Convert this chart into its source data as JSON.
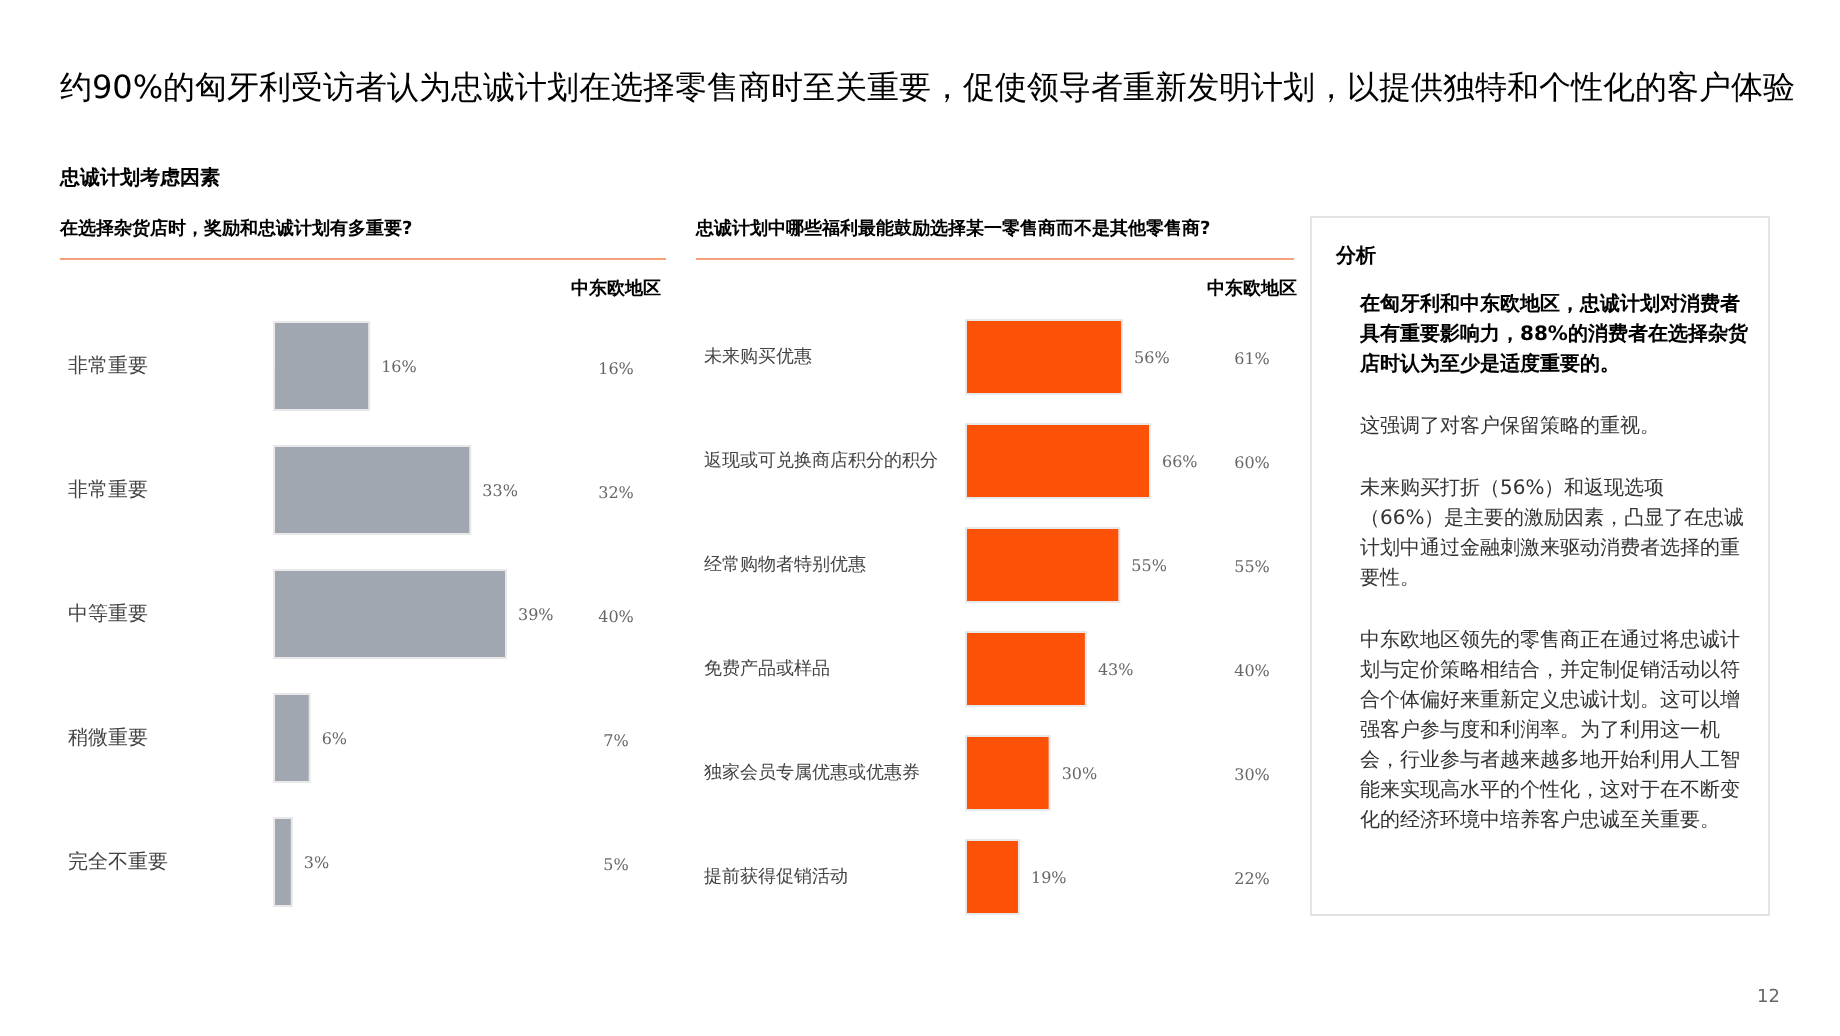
{
  "chart_data": [
    {
      "type": "other",
      "title": "约90%的匈牙利受访者认为忠诚计划在选择零售商时至关重要，促使领导者重新发明计划，以提供独特和个性化的客户体验",
      "subtitle": "忠诚计划考虑因素",
      "annotations": [
        "12"
      ]
    },
    {
      "type": "bar",
      "orientation": "horizontal",
      "title": "在选择杂货店时，奖励和忠诚计划有多重要?",
      "categories": [
        "非常重要",
        "非常重要",
        "中等重要",
        "稍微重要",
        "完全不重要"
      ],
      "series": [
        {
          "color": "#a0a7b1",
          "values": [
            16,
            33,
            39,
            6,
            3
          ],
          "value_labels": [
            "16%",
            "33%",
            "39%",
            "6%",
            "3%"
          ]
        }
      ]
    },
    {
      "type": "other",
      "title": "中东欧地区",
      "annotations": [
        "16%",
        "32%",
        "40%",
        "7%",
        "5%"
      ]
    },
    {
      "type": "bar",
      "orientation": "horizontal",
      "title": "忠诚计划中哪些福利最能鼓励选择某一零售商而不是其他零售商?",
      "categories": [
        "未来购买优惠",
        "返现或可兑换商店积分的积分",
        "经常购物者特别优惠",
        "免费产品或样品",
        "独家会员专属优惠或优惠券",
        "提前获得促销活动"
      ],
      "series": [
        {
          "color": "#fd5108",
          "values": [
            56,
            66,
            55,
            43,
            30,
            19
          ],
          "value_labels": [
            "56%",
            "66%",
            "55%",
            "43%",
            "30%",
            "19%"
          ]
        }
      ]
    },
    {
      "type": "other",
      "title": "中东欧地区",
      "annotations": [
        "61%",
        "60%",
        "55%",
        "40%",
        "30%",
        "22%"
      ]
    },
    {
      "type": "other",
      "title": "分析",
      "annotations": [
        "在匈牙利和中东欧地区，忠诚计划对消费者具有重要影响力，88%的消费者在选择杂货店时认为至少是适度重要的。",
        "这强调了对客户保留策略的重视。",
        "未来购买打折（56%）和返现选项（66%）是主要的激励因素，凸显了在忠诚计划中通过金融刺激来驱动消费者选择的重要性。",
        "中东欧地区领先的零售商正在通过将忠诚计划与定价策略相结合，并定制促销活动以符合个体偏好来重新定义忠诚计划。这可以增强客户参与度和利润率。为了利用这一机会，行业参与者越来越多地开始利用人工智能来实现高水平的个性化，这对于在不断变化的经济环境中培养客户忠诚至关重要。"
      ]
    }
  ]
}
